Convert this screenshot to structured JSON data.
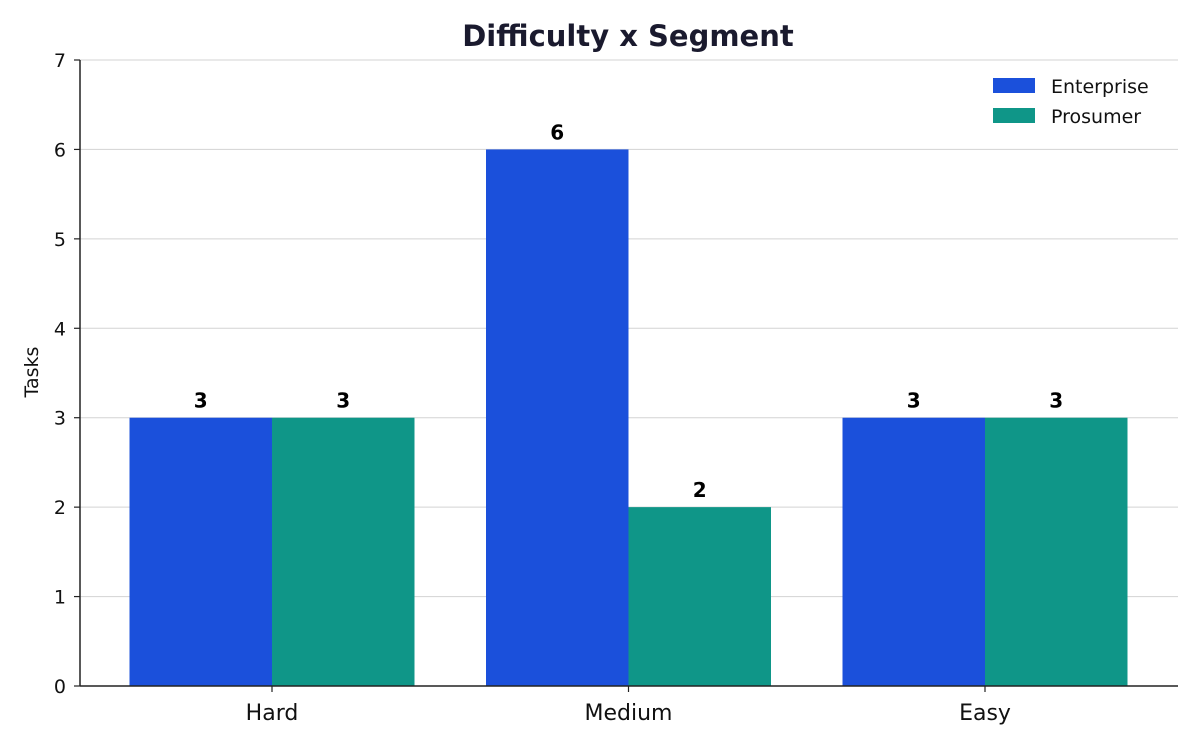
{
  "chart_data": {
    "type": "bar",
    "title": "Difficulty x Segment",
    "xlabel": "",
    "ylabel": "Tasks",
    "categories": [
      "Hard",
      "Medium",
      "Easy"
    ],
    "series": [
      {
        "name": "Enterprise",
        "values": [
          3,
          6,
          3
        ],
        "color": "#1b50db"
      },
      {
        "name": "Prosumer",
        "values": [
          3,
          2,
          3
        ],
        "color": "#0f9688"
      }
    ],
    "ylim": [
      0,
      7
    ],
    "yticks": [
      0,
      1,
      2,
      3,
      4,
      5,
      6,
      7
    ],
    "grid": "horizontal",
    "legend_position": "top-right"
  }
}
